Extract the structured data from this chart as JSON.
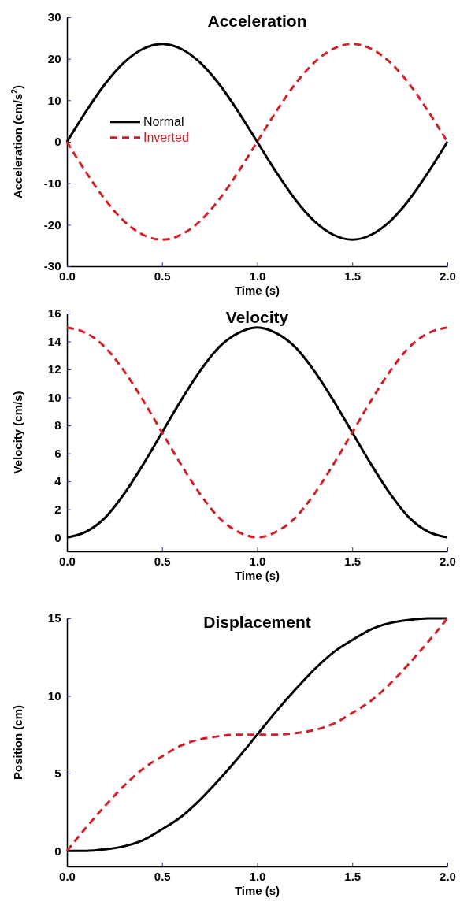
{
  "chart_data": [
    {
      "type": "line",
      "title": "Acceleration",
      "xlabel": "Time (s)",
      "ylabel": "Acceleration (cm/s$^{2}$)",
      "x": [
        0,
        0.1,
        0.2,
        0.3,
        0.4,
        0.5,
        0.6,
        0.7,
        0.8,
        0.9,
        1,
        1.1,
        1.2,
        1.3,
        1.4,
        1.5,
        1.6,
        1.7,
        1.8,
        1.9,
        2
      ],
      "xlim": [
        0,
        2
      ],
      "xticks": [
        {
          "value": 0,
          "label": "0.0"
        },
        {
          "value": 0.5,
          "label": "0.5"
        },
        {
          "value": 1,
          "label": "1.0"
        },
        {
          "value": 1.5,
          "label": "1.5"
        },
        {
          "value": 2,
          "label": "2.0"
        }
      ],
      "ylim": [
        -30,
        30
      ],
      "yticks": [
        -30,
        -20,
        -10,
        0,
        10,
        20,
        30
      ],
      "legend": "top left",
      "marker": "none",
      "series": [
        {
          "name": "Normal",
          "color": "#000000",
          "line_style": "solid",
          "values": [
            0,
            7.3,
            13.9,
            19.1,
            22.4,
            23.6,
            22.4,
            19.1,
            13.9,
            7.3,
            0,
            -7.3,
            -13.9,
            -19.1,
            -22.4,
            -23.6,
            -22.4,
            -19.1,
            -13.9,
            -7.3,
            0
          ]
        },
        {
          "name": "Inverted",
          "color": "#d0212a",
          "line_style": "dashed",
          "values": [
            0,
            -7.3,
            -13.9,
            -19.1,
            -22.4,
            -23.6,
            -22.4,
            -19.1,
            -13.9,
            -7.3,
            0,
            7.3,
            13.9,
            19.1,
            22.4,
            23.6,
            22.4,
            19.1,
            13.9,
            7.3,
            0
          ]
        }
      ]
    },
    {
      "type": "line",
      "title": "Velocity",
      "xlabel": "Time (s)",
      "ylabel": "Velocity (cm/s)",
      "x": [
        0,
        0.1,
        0.2,
        0.3,
        0.4,
        0.5,
        0.6,
        0.7,
        0.8,
        0.9,
        1,
        1.1,
        1.2,
        1.3,
        1.4,
        1.5,
        1.6,
        1.7,
        1.8,
        1.9,
        2
      ],
      "xlim": [
        0,
        2
      ],
      "xticks": [
        {
          "value": 0,
          "label": "0.0"
        },
        {
          "value": 0.5,
          "label": "0.5"
        },
        {
          "value": 1,
          "label": "1.0"
        },
        {
          "value": 1.5,
          "label": "1.5"
        },
        {
          "value": 2,
          "label": "2.0"
        }
      ],
      "ylim": [
        -1,
        16
      ],
      "yticks": [
        0,
        2,
        4,
        6,
        8,
        10,
        12,
        14,
        16
      ],
      "marker": "none",
      "series": [
        {
          "color": "#000000",
          "line_style": "solid",
          "values": [
            0,
            0.4,
            1.4,
            3.1,
            5.2,
            7.5,
            9.8,
            11.9,
            13.6,
            14.6,
            15,
            14.6,
            13.6,
            11.9,
            9.8,
            7.5,
            5.2,
            3.1,
            1.4,
            0.4,
            0
          ]
        },
        {
          "color": "#d0212a",
          "line_style": "dashed",
          "values": [
            15,
            14.6,
            13.6,
            11.9,
            9.8,
            7.5,
            5.2,
            3.1,
            1.4,
            0.4,
            0,
            0.4,
            1.4,
            3.1,
            5.2,
            7.5,
            9.8,
            11.9,
            13.6,
            14.6,
            15
          ]
        }
      ]
    },
    {
      "type": "line",
      "title": "Displacement",
      "xlabel": "Time (s)",
      "ylabel": "Position (cm)",
      "x": [
        0,
        0.1,
        0.2,
        0.3,
        0.4,
        0.5,
        0.6,
        0.7,
        0.8,
        0.9,
        1,
        1.1,
        1.2,
        1.3,
        1.4,
        1.5,
        1.6,
        1.7,
        1.8,
        1.9,
        2
      ],
      "xlim": [
        0,
        2
      ],
      "xticks": [
        {
          "value": 0,
          "label": "0.0"
        },
        {
          "value": 0.5,
          "label": "0.5"
        },
        {
          "value": 1,
          "label": "1.0"
        },
        {
          "value": 1.5,
          "label": "1.5"
        },
        {
          "value": 2,
          "label": "2.0"
        }
      ],
      "ylim": [
        -1,
        15
      ],
      "yticks": [
        0,
        5,
        10,
        15
      ],
      "marker": "none",
      "series": [
        {
          "color": "#000000",
          "line_style": "solid",
          "values": [
            0,
            0,
            0.1,
            0.3,
            0.7,
            1.4,
            2.2,
            3.3,
            4.6,
            6,
            7.5,
            9,
            10.4,
            11.7,
            12.8,
            13.6,
            14.3,
            14.7,
            14.9,
            15,
            15
          ]
        },
        {
          "color": "#d0212a",
          "line_style": "dashed",
          "values": [
            0,
            1.5,
            2.9,
            4.2,
            5.3,
            6.1,
            6.8,
            7.2,
            7.4,
            7.5,
            7.5,
            7.5,
            7.6,
            7.8,
            8.2,
            8.9,
            9.7,
            10.8,
            12.1,
            13.5,
            15
          ]
        }
      ]
    }
  ]
}
